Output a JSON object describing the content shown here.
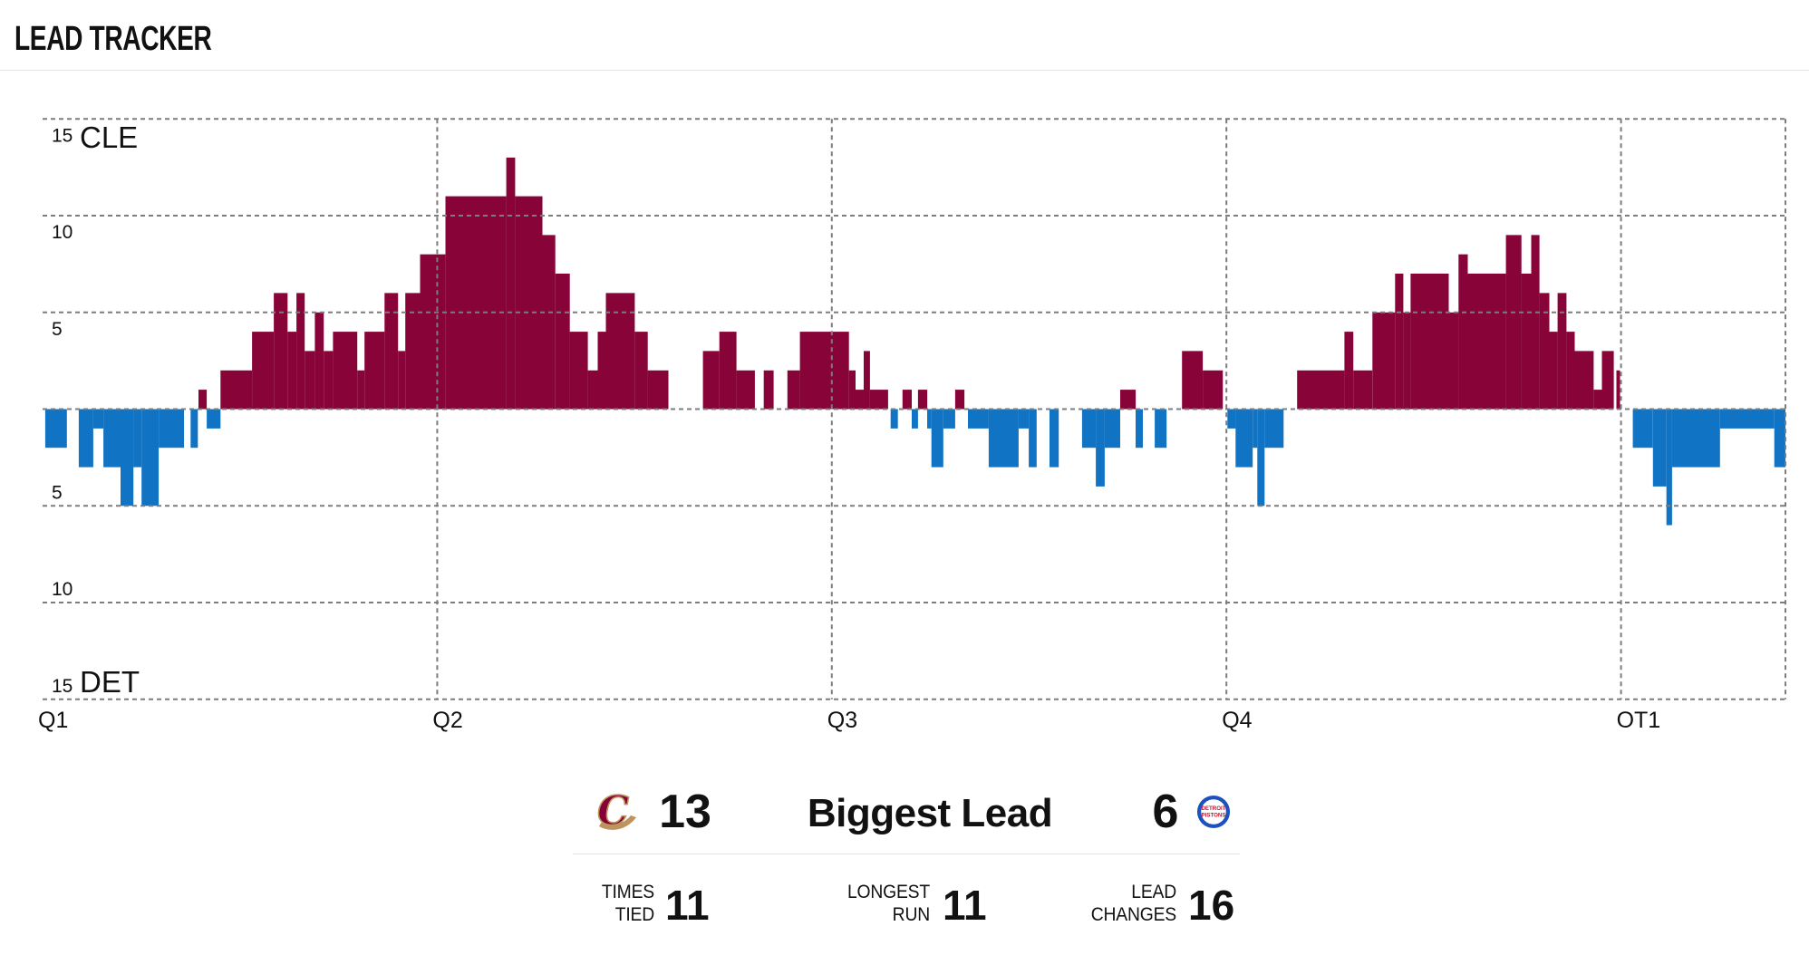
{
  "header": {
    "title": "LEAD TRACKER"
  },
  "chart_data": {
    "type": "bar",
    "title": "LEAD TRACKER",
    "description": "Game lead margin over time; bars above the axis are CLE leads, bars below are DET leads.",
    "teams": {
      "top": {
        "abbr": "CLE",
        "color": "#870338"
      },
      "bottom": {
        "abbr": "DET",
        "color": "#1173C4"
      }
    },
    "x_axis": {
      "total_minutes": 53,
      "labels": [
        {
          "t": 0,
          "label": "Q1"
        },
        {
          "t": 12,
          "label": "Q2"
        },
        {
          "t": 24,
          "label": "Q3"
        },
        {
          "t": 36,
          "label": "Q4"
        },
        {
          "t": 48,
          "label": "OT1"
        }
      ],
      "grid_verticals": [
        12,
        24,
        36,
        48,
        53
      ]
    },
    "y_axis": {
      "max": 15,
      "grid_values": [
        15,
        10,
        5,
        0,
        -5,
        -10,
        -15
      ],
      "ticks": [
        {
          "v": 15,
          "label": "15"
        },
        {
          "v": 10,
          "label": "10"
        },
        {
          "v": 5,
          "label": "5"
        },
        {
          "v": -5,
          "label": "5"
        },
        {
          "v": -10,
          "label": "10"
        },
        {
          "v": -15,
          "label": "15"
        }
      ]
    },
    "segments": [
      [
        0.08,
        0.74,
        -2
      ],
      [
        1.1,
        1.54,
        -3
      ],
      [
        1.54,
        1.85,
        -1
      ],
      [
        1.85,
        2.37,
        -3
      ],
      [
        2.37,
        2.76,
        -5
      ],
      [
        2.76,
        3.01,
        -3
      ],
      [
        3.01,
        3.53,
        -5
      ],
      [
        3.53,
        4.3,
        -2
      ],
      [
        4.5,
        4.72,
        -2
      ],
      [
        4.74,
        4.99,
        1
      ],
      [
        4.99,
        5.41,
        -1
      ],
      [
        5.41,
        6.37,
        2
      ],
      [
        6.37,
        7.03,
        4
      ],
      [
        7.03,
        7.45,
        6
      ],
      [
        7.45,
        7.72,
        4
      ],
      [
        7.72,
        7.97,
        6
      ],
      [
        7.97,
        8.28,
        3
      ],
      [
        8.28,
        8.55,
        5
      ],
      [
        8.55,
        8.83,
        3
      ],
      [
        8.83,
        9.57,
        4
      ],
      [
        9.57,
        9.79,
        2
      ],
      [
        9.79,
        10.4,
        4
      ],
      [
        10.4,
        10.81,
        6
      ],
      [
        10.81,
        11.03,
        3
      ],
      [
        11.03,
        11.48,
        6
      ],
      [
        11.48,
        12.25,
        8
      ],
      [
        12.25,
        14.1,
        11
      ],
      [
        14.1,
        14.37,
        13
      ],
      [
        14.37,
        15.2,
        11
      ],
      [
        15.2,
        15.59,
        9
      ],
      [
        15.59,
        16.03,
        7
      ],
      [
        16.03,
        16.58,
        4
      ],
      [
        16.58,
        16.88,
        2
      ],
      [
        16.88,
        17.13,
        4
      ],
      [
        17.13,
        18.01,
        6
      ],
      [
        18.01,
        18.4,
        4
      ],
      [
        18.4,
        19.03,
        2
      ],
      [
        20.08,
        20.58,
        3
      ],
      [
        20.58,
        21.1,
        4
      ],
      [
        21.1,
        21.66,
        2
      ],
      [
        21.93,
        22.23,
        2
      ],
      [
        22.65,
        23.03,
        2
      ],
      [
        23.03,
        24.52,
        4
      ],
      [
        24.52,
        24.72,
        2
      ],
      [
        24.72,
        24.97,
        1
      ],
      [
        24.97,
        25.16,
        3
      ],
      [
        25.16,
        25.71,
        1
      ],
      [
        25.79,
        26.01,
        -1
      ],
      [
        26.15,
        26.43,
        1
      ],
      [
        26.43,
        26.62,
        -1
      ],
      [
        26.62,
        26.9,
        1
      ],
      [
        26.9,
        27.03,
        -1
      ],
      [
        27.03,
        27.39,
        -3
      ],
      [
        27.39,
        27.75,
        -1
      ],
      [
        27.75,
        28.03,
        1
      ],
      [
        28.14,
        28.77,
        -1
      ],
      [
        28.77,
        29.68,
        -3
      ],
      [
        29.68,
        29.99,
        -1
      ],
      [
        29.99,
        30.23,
        -3
      ],
      [
        30.62,
        30.9,
        -3
      ],
      [
        31.61,
        32.03,
        -2
      ],
      [
        32.03,
        32.3,
        -4
      ],
      [
        32.3,
        32.77,
        -2
      ],
      [
        32.77,
        33.24,
        1
      ],
      [
        33.24,
        33.46,
        -2
      ],
      [
        33.82,
        34.18,
        -2
      ],
      [
        34.65,
        35.28,
        3
      ],
      [
        35.28,
        35.89,
        2
      ],
      [
        36.03,
        36.28,
        -1
      ],
      [
        36.28,
        36.8,
        -3
      ],
      [
        36.8,
        36.94,
        -2
      ],
      [
        36.94,
        37.16,
        -5
      ],
      [
        37.16,
        37.74,
        -2
      ],
      [
        38.15,
        39.59,
        2
      ],
      [
        39.59,
        39.86,
        4
      ],
      [
        39.86,
        40.44,
        2
      ],
      [
        40.44,
        41.13,
        5
      ],
      [
        41.13,
        41.38,
        7
      ],
      [
        41.38,
        41.6,
        5
      ],
      [
        41.6,
        42.76,
        7
      ],
      [
        42.76,
        43.06,
        5
      ],
      [
        43.06,
        43.34,
        8
      ],
      [
        43.34,
        44.5,
        7
      ],
      [
        44.5,
        44.97,
        9
      ],
      [
        44.97,
        45.27,
        7
      ],
      [
        45.27,
        45.52,
        9
      ],
      [
        45.52,
        45.82,
        6
      ],
      [
        45.82,
        46.07,
        4
      ],
      [
        46.07,
        46.34,
        6
      ],
      [
        46.34,
        46.59,
        4
      ],
      [
        46.59,
        47.17,
        3
      ],
      [
        47.17,
        47.42,
        1
      ],
      [
        47.42,
        47.78,
        3
      ],
      [
        47.86,
        47.97,
        2
      ],
      [
        48.36,
        48.97,
        -2
      ],
      [
        48.97,
        49.38,
        -4
      ],
      [
        49.38,
        49.55,
        -6
      ],
      [
        49.55,
        51.01,
        -3
      ],
      [
        51.01,
        52.66,
        -1
      ],
      [
        52.66,
        53.0,
        -3
      ]
    ]
  },
  "stats": {
    "biggest_lead": {
      "label": "Biggest Lead",
      "cle_value": "13",
      "det_value": "6"
    },
    "logos": {
      "cavs_letter": "C",
      "cavs_maroon": "#860038",
      "cavs_gold": "#BC945C",
      "pistons_blue": "#1D52BE",
      "pistons_red": "#C8102E",
      "pistons_line1": "DETROIT",
      "pistons_line2": "PISTONS"
    },
    "secondary": [
      {
        "label_line1": "TIMES",
        "label_line2": "TIED",
        "value": "11"
      },
      {
        "label_line1": "LONGEST",
        "label_line2": "RUN",
        "value": "11"
      },
      {
        "label_line1": "LEAD",
        "label_line2": "CHANGES",
        "value": "16"
      }
    ]
  }
}
